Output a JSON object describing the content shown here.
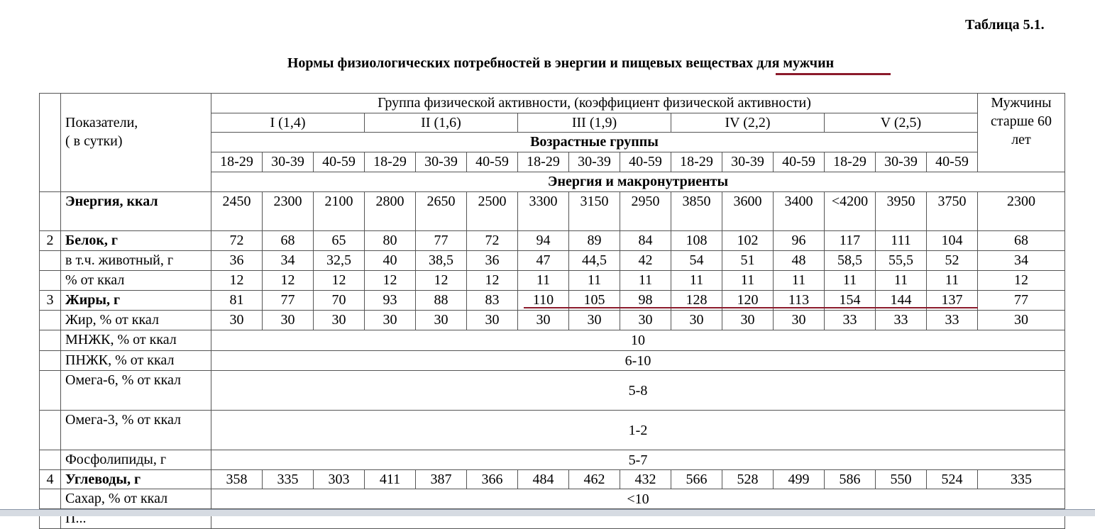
{
  "table_number": "Таблица 5.1.",
  "title": "Нормы физиологических потребностей в энергии и пищевых веществах для мужчин",
  "underline_color": "#8b1a2b",
  "header": {
    "indicators": "Показатели,\n( в сутки)",
    "activity_group": "Группа физической активности, (коэффициент физической активности)",
    "groups": [
      "I (1,4)",
      "II (1,6)",
      "III (1,9)",
      "IV (2,2)",
      "V (2,5)"
    ],
    "age_groups_title": "Возрастные группы",
    "ages": [
      "18-29",
      "30-39",
      "40-59",
      "18-29",
      "30-39",
      "40-59",
      "18-29",
      "30-39",
      "40-59",
      "18-29",
      "30-39",
      "40-59",
      "18-29",
      "30-39",
      "40-59"
    ],
    "older": "Мужчины старше 60 лет",
    "section": "Энергия и макронутриенты"
  },
  "rows": [
    {
      "num": "",
      "label": "Энергия, ккал",
      "bold": true,
      "values": [
        "2450",
        "2300",
        "2100",
        "2800",
        "2650",
        "2500",
        "3300",
        "3150",
        "2950",
        "3850",
        "3600",
        "3400",
        "<4200",
        "3950",
        "3750",
        "2300"
      ]
    },
    {
      "num": "2",
      "label": "Белок, г",
      "bold": true,
      "values": [
        "72",
        "68",
        "65",
        "80",
        "77",
        "72",
        "94",
        "89",
        "84",
        "108",
        "102",
        "96",
        "117",
        "111",
        "104",
        "68"
      ]
    },
    {
      "num": "",
      "label": "в т.ч. животный, г",
      "values": [
        "36",
        "34",
        "32,5",
        "40",
        "38,5",
        "36",
        "47",
        "44,5",
        "42",
        "54",
        "51",
        "48",
        "58,5",
        "55,5",
        "52",
        "34"
      ]
    },
    {
      "num": "",
      "label": "% от ккал",
      "values": [
        "12",
        "12",
        "12",
        "12",
        "12",
        "12",
        "11",
        "11",
        "11",
        "11",
        "11",
        "11",
        "11",
        "11",
        "11",
        "12"
      ]
    },
    {
      "num": "3",
      "label": "Жиры, г",
      "bold": true,
      "values": [
        "81",
        "77",
        "70",
        "93",
        "88",
        "83",
        "110",
        "105",
        "98",
        "128",
        "120",
        "113",
        "154",
        "144",
        "137",
        "77"
      ]
    },
    {
      "num": "",
      "label": "Жир, % от ккал",
      "values": [
        "30",
        "30",
        "30",
        "30",
        "30",
        "30",
        "30",
        "30",
        "30",
        "30",
        "30",
        "30",
        "33",
        "33",
        "33",
        "30"
      ]
    },
    {
      "num": "",
      "label": "МНЖК, % от ккал",
      "span": "10"
    },
    {
      "num": "",
      "label": "ПНЖК, % от ккал",
      "span": "6-10"
    },
    {
      "num": "",
      "label": "Омега-6, % от ккал",
      "span": "5-8"
    },
    {
      "num": "",
      "label": "Омега-3, % от ккал",
      "span": "1-2"
    },
    {
      "num": "",
      "label": "Фосфолипиды, г",
      "span": "5-7"
    },
    {
      "num": "4",
      "label": "Углеводы, г",
      "bold": true,
      "values": [
        "358",
        "335",
        "303",
        "411",
        "387",
        "366",
        "484",
        "462",
        "432",
        "566",
        "528",
        "499",
        "586",
        "550",
        "524",
        "335"
      ]
    },
    {
      "num": "",
      "label": "Сахар,  % от ккал",
      "span": "<10"
    },
    {
      "num": "",
      "label": "П...",
      "span": ""
    }
  ]
}
